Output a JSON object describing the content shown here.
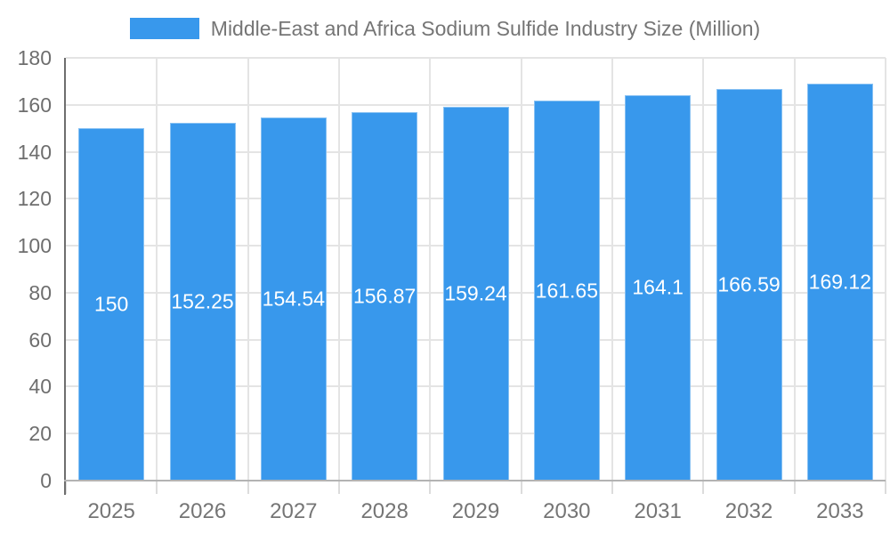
{
  "legend": {
    "label": "Middle-East and Africa Sodium Sulfide Industry Size (Million)"
  },
  "colors": {
    "bar": "#3898ec",
    "grid": "#e4e4e4",
    "y_axis_line": "#6e6e6e",
    "baseline": "#b3b3b3",
    "tick_label": "#757575",
    "value_label": "#ffffff",
    "background": "#ffffff"
  },
  "chart_data": {
    "type": "bar",
    "title": "Middle-East and Africa Sodium Sulfide Industry Size (Million)",
    "series_name": "Middle-East and Africa Sodium Sulfide Industry Size (Million)",
    "categories": [
      "2025",
      "2026",
      "2027",
      "2028",
      "2029",
      "2030",
      "2031",
      "2032",
      "2033"
    ],
    "values": [
      150,
      152.25,
      154.54,
      156.87,
      159.24,
      161.65,
      164.1,
      166.59,
      169.12
    ],
    "value_labels": [
      "150",
      "152.25",
      "154.54",
      "156.87",
      "159.24",
      "161.65",
      "164.1",
      "166.59",
      "169.12"
    ],
    "xlabel": "",
    "ylabel": "",
    "ylim": [
      0,
      180
    ],
    "y_ticks": [
      0,
      20,
      40,
      60,
      80,
      100,
      120,
      140,
      160,
      180
    ],
    "grid": true,
    "legend_position": "top",
    "bar_color": "#3898ec",
    "value_label_position": "inside-center"
  }
}
